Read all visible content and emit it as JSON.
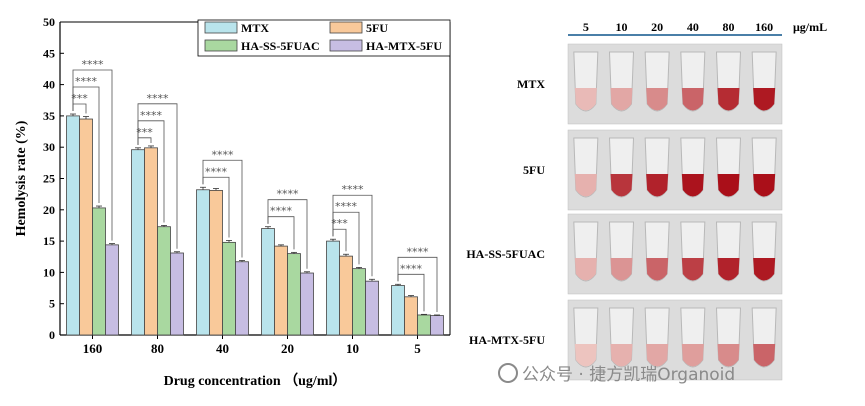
{
  "chart_data": {
    "type": "bar",
    "xlabel": "Drug concentration （ug/ml）",
    "ylabel": "Hemolysis rate (%)",
    "ylim": [
      0,
      50
    ],
    "yticks": [
      0,
      5,
      10,
      15,
      20,
      25,
      30,
      35,
      40,
      45,
      50
    ],
    "categories": [
      "160",
      "80",
      "40",
      "20",
      "10",
      "5"
    ],
    "legend_position": "top",
    "series": [
      {
        "name": "MTX",
        "color": "#b9e4ec",
        "values": [
          35.0,
          29.6,
          23.2,
          17.0,
          15.0,
          7.9
        ],
        "errors": [
          0.3,
          0.3,
          0.4,
          0.3,
          0.3,
          0.2
        ]
      },
      {
        "name": "5FU",
        "color": "#f9c99a",
        "values": [
          34.5,
          29.9,
          23.1,
          14.2,
          12.6,
          6.1
        ],
        "errors": [
          0.4,
          0.3,
          0.3,
          0.2,
          0.3,
          0.2
        ]
      },
      {
        "name": "HA-SS-5FUAC",
        "color": "#a9d8a0",
        "values": [
          20.3,
          17.3,
          14.8,
          13.0,
          10.6,
          3.2
        ],
        "errors": [
          0.3,
          0.2,
          0.3,
          0.2,
          0.2,
          0.1
        ]
      },
      {
        "name": "HA-MTX-5FU",
        "color": "#c7bde3",
        "values": [
          14.4,
          13.1,
          11.7,
          9.9,
          8.6,
          3.1
        ],
        "errors": [
          0.2,
          0.2,
          0.2,
          0.2,
          0.3,
          0.1
        ]
      }
    ],
    "significance": [
      {
        "category": "160",
        "labels": [
          "***",
          "****",
          "****"
        ]
      },
      {
        "category": "80",
        "labels": [
          "***",
          "****",
          "****"
        ]
      },
      {
        "category": "40",
        "labels": [
          "****",
          "****"
        ]
      },
      {
        "category": "20",
        "labels": [
          "****",
          "****"
        ]
      },
      {
        "category": "10",
        "labels": [
          "***",
          "****",
          "****"
        ]
      },
      {
        "category": "5",
        "labels": [
          "****",
          "****"
        ]
      }
    ]
  },
  "photo_panel": {
    "concentrations": [
      "5",
      "10",
      "20",
      "40",
      "80",
      "160"
    ],
    "unit": "μg/mL",
    "rows": [
      {
        "label": "MTX",
        "intensity": [
          0.1,
          0.2,
          0.35,
          0.55,
          0.85,
          0.95
        ]
      },
      {
        "label": "5FU",
        "intensity": [
          0.15,
          0.8,
          0.9,
          0.98,
          1.0,
          1.0
        ]
      },
      {
        "label": "HA-SS-5FUAC",
        "intensity": [
          0.15,
          0.3,
          0.55,
          0.75,
          0.9,
          0.95
        ]
      },
      {
        "label": "HA-MTX-5FU",
        "intensity": [
          0.05,
          0.15,
          0.2,
          0.25,
          0.35,
          0.55
        ]
      }
    ]
  },
  "watermark": {
    "text": "公众号 · 捷方凯瑞Organoid"
  }
}
